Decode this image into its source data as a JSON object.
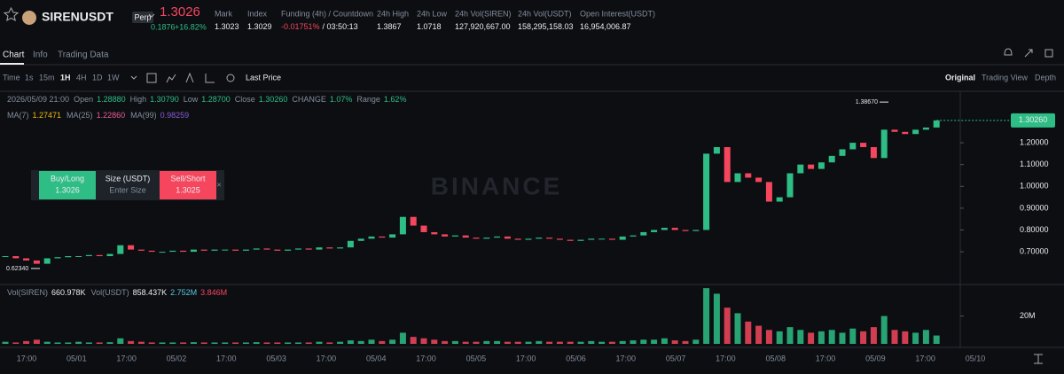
{
  "ui": {
    "symbol": "SIRENUSDT",
    "badge": "Perp",
    "last_price": "1.3026",
    "change_abs": "0.1876",
    "change_pct": "+16.82%",
    "stats": [
      {
        "label": "Mark",
        "value": "1.3023"
      },
      {
        "label": "Index",
        "value": "1.3029"
      },
      {
        "label": "Funding (4h) / Countdown",
        "value": "-0.01751%",
        "extra": "/ 03:50:13"
      },
      {
        "label": "24h High",
        "value": "1.3867"
      },
      {
        "label": "24h Low",
        "value": "1.0718"
      },
      {
        "label": "24h Vol(SIREN)",
        "value": "127,920,667.00"
      },
      {
        "label": "24h Vol(USDT)",
        "value": "158,295,158.03"
      },
      {
        "label": "Open Interest(USDT)",
        "value": "16,954,006.87"
      }
    ],
    "tabs": [
      "Chart",
      "Info",
      "Trading Data"
    ],
    "intervals": [
      "Time",
      "1s",
      "15m",
      "1H",
      "4H",
      "1D",
      "1W"
    ],
    "price_type": "Last Price",
    "views": [
      "Original",
      "Trading View",
      "Depth"
    ],
    "ohlc": {
      "time": "2026/05/09 21:00",
      "items": [
        {
          "label": "Open",
          "value": "1.28880"
        },
        {
          "label": "High",
          "value": "1.30790"
        },
        {
          "label": "Low",
          "value": "1.28700"
        },
        {
          "label": "Close",
          "value": "1.30260"
        },
        {
          "label": "CHANGE",
          "value": "1.07%"
        },
        {
          "label": "Range",
          "value": "1.62%"
        }
      ]
    },
    "ma": [
      {
        "label": "MA(7)",
        "value": "1.27471",
        "color": "#f0b90b"
      },
      {
        "label": "MA(25)",
        "value": "1.22860",
        "color": "#e85b9b"
      },
      {
        "label": "MA(99)",
        "value": "0.98259",
        "color": "#8a5cd6"
      }
    ],
    "order": {
      "buy": "Buy/Long",
      "buy_price": "1.3026",
      "size": "Size (USDT)",
      "size_placeholder": "Enter Size",
      "sell": "Sell/Short",
      "sell_price": "1.3025"
    },
    "watermark": "BINANCE",
    "vol_legend": [
      {
        "label": "Vol(SIREN)",
        "value": "660.978K"
      },
      {
        "label": "Vol(USDT)",
        "value": "858.437K"
      },
      {
        "value": "2.752M",
        "color": "#5bc8e0"
      },
      {
        "value": "3.846M",
        "color": "#f6465d"
      }
    ]
  },
  "chart_data": [
    {
      "type": "candlestick",
      "closes": [
        0.68,
        0.67,
        0.66,
        0.645,
        0.67,
        0.675,
        0.68,
        0.68,
        0.685,
        0.68,
        0.69,
        0.73,
        0.71,
        0.705,
        0.7,
        0.7,
        0.705,
        0.7,
        0.71,
        0.705,
        0.71,
        0.71,
        0.705,
        0.71,
        0.715,
        0.71,
        0.705,
        0.71,
        0.715,
        0.71,
        0.72,
        0.715,
        0.72,
        0.75,
        0.76,
        0.77,
        0.765,
        0.78,
        0.86,
        0.82,
        0.79,
        0.78,
        0.77,
        0.775,
        0.765,
        0.76,
        0.765,
        0.77,
        0.76,
        0.755,
        0.76,
        0.765,
        0.76,
        0.755,
        0.75,
        0.755,
        0.76,
        0.76,
        0.755,
        0.77,
        0.775,
        0.79,
        0.8,
        0.81,
        0.8,
        0.795,
        0.8,
        1.15,
        1.18,
        1.02,
        1.06,
        1.04,
        1.02,
        0.93,
        0.95,
        1.06,
        1.1,
        1.08,
        1.11,
        1.14,
        1.17,
        1.2,
        1.18,
        1.13,
        1.26,
        1.25,
        1.24,
        1.26,
        1.27,
        1.3026
      ],
      "ylim": [
        0.554,
        1.428
      ],
      "yticks": [
        {
          "value": 0.7,
          "label": "0.70000"
        },
        {
          "value": 0.8,
          "label": "0.80000"
        },
        {
          "value": 0.9,
          "label": "0.90000"
        },
        {
          "value": 1.0,
          "label": "1.00000"
        },
        {
          "value": 1.1,
          "label": "1.10000"
        },
        {
          "value": 1.2,
          "label": "1.20000"
        }
      ],
      "annotations": [
        {
          "value": 1.3867,
          "label": "1.38670"
        },
        {
          "value": 0.6234,
          "label": "0.62340"
        }
      ],
      "current": {
        "value": 1.3026,
        "label": "1.30260"
      },
      "x_labels": [
        "17:00",
        "05/01",
        "17:00",
        "05/02",
        "17:00",
        "05/03",
        "17:00",
        "05/04",
        "17:00",
        "05/05",
        "17:00",
        "05/06",
        "17:00",
        "05/07",
        "17:00",
        "05/08",
        "17:00",
        "05/09",
        "17:00",
        "05/10"
      ],
      "up_color": "#2ebd85",
      "down_color": "#f6465d"
    },
    {
      "type": "bar",
      "values": [
        1.5,
        1,
        2,
        3,
        1.5,
        1,
        1,
        1.5,
        1,
        1,
        1.2,
        4,
        2,
        1.5,
        1,
        1,
        1,
        1,
        1.2,
        1,
        1,
        1,
        1,
        1,
        1.2,
        1,
        1,
        1,
        1,
        1,
        1.5,
        1,
        1.5,
        2.5,
        2,
        3,
        2,
        3,
        8,
        5,
        4,
        3,
        2,
        2,
        1.5,
        1.5,
        2,
        2,
        1.5,
        1.5,
        1.5,
        2,
        1.5,
        1.5,
        1.5,
        1.5,
        2,
        1.5,
        1.5,
        2,
        2.5,
        3,
        3,
        4,
        2.5,
        2,
        3,
        40,
        36,
        26,
        22,
        16,
        13,
        10,
        9,
        12,
        10,
        8,
        9,
        10,
        8,
        11,
        9,
        12,
        20,
        10,
        9,
        8,
        10,
        6
      ],
      "ylim": [
        0,
        42
      ],
      "yticks": [
        {
          "value": 20,
          "label": "20M"
        }
      ]
    }
  ]
}
